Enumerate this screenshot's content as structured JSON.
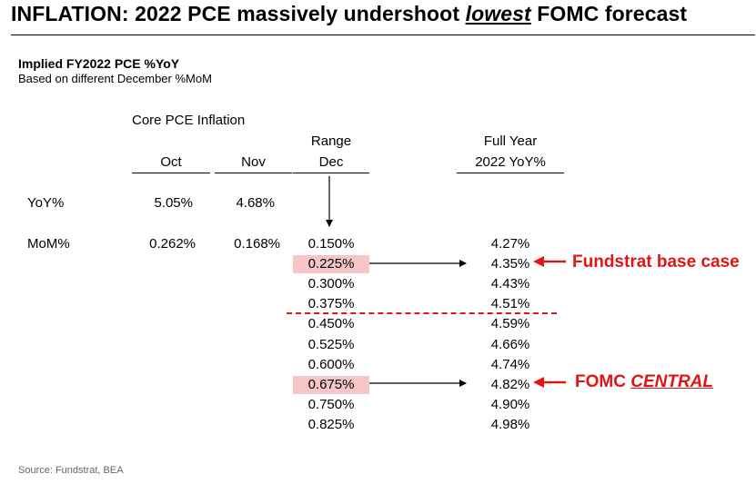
{
  "title": {
    "prefix": "INFLATION: 2022 PCE massively undershoot ",
    "emphasis": "lowest",
    "suffix": " FOMC forecast"
  },
  "subtitle": "Implied FY2022 PCE %YoY",
  "note": "Based on different December %MoM",
  "table": {
    "group_header": "Core PCE Inflation",
    "columns": {
      "oct": "Oct",
      "nov": "Nov",
      "range_top": "Range",
      "range_bottom": "Dec",
      "fy_top": "Full Year",
      "fy_bottom": "2022 YoY%"
    },
    "rows": [
      {
        "label": "YoY%",
        "oct": "5.05%",
        "nov": "4.68%"
      },
      {
        "label": "MoM%",
        "oct": "0.262%",
        "nov": "0.168%"
      }
    ],
    "scenarios": [
      {
        "dec": "0.150%",
        "fy": "4.27%",
        "highlight": false
      },
      {
        "dec": "0.225%",
        "fy": "4.35%",
        "highlight": true
      },
      {
        "dec": "0.300%",
        "fy": "4.43%",
        "highlight": false
      },
      {
        "dec": "0.375%",
        "fy": "4.51%",
        "highlight": false
      },
      {
        "dec": "0.450%",
        "fy": "4.59%",
        "highlight": false
      },
      {
        "dec": "0.525%",
        "fy": "4.66%",
        "highlight": false
      },
      {
        "dec": "0.600%",
        "fy": "4.74%",
        "highlight": false
      },
      {
        "dec": "0.675%",
        "fy": "4.82%",
        "highlight": true
      },
      {
        "dec": "0.750%",
        "fy": "4.90%",
        "highlight": false
      },
      {
        "dec": "0.825%",
        "fy": "4.98%",
        "highlight": false
      }
    ]
  },
  "callouts": {
    "base_case": "Fundstrat base case",
    "fomc_prefix": "FOMC ",
    "fomc_emphasis": "CENTRAL"
  },
  "source": "Source: Fundstrat, BEA",
  "colors": {
    "accent": "#e01616",
    "highlight": "#f6c6c6"
  }
}
